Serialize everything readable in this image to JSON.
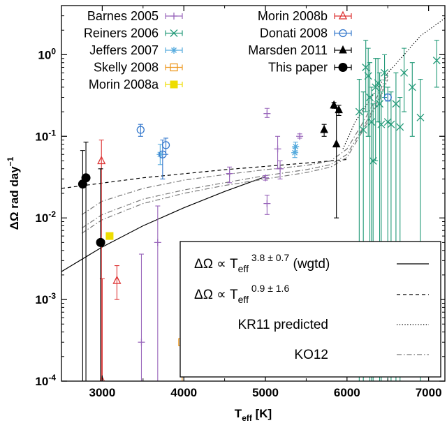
{
  "chart_data": {
    "type": "scatter",
    "xlabel": "T",
    "xlabel_sub": "eff",
    "xlabel_unit": "[K]",
    "ylabel": "ΔΩ rad day",
    "ylabel_sup": "−1",
    "yscale": "log",
    "xlim": [
      2500,
      7200
    ],
    "ylim": [
      0.0001,
      4
    ],
    "x_ticks": [
      3000,
      4000,
      5000,
      6000,
      7000
    ],
    "y_ticks": [
      {
        "value": 1,
        "base": "10",
        "exp": "0"
      },
      {
        "value": 0.1,
        "base": "10",
        "exp": "-1"
      },
      {
        "value": 0.01,
        "base": "10",
        "exp": "-2"
      },
      {
        "value": 0.001,
        "base": "10",
        "exp": "-3"
      },
      {
        "value": 0.0001,
        "base": "10",
        "exp": "-4"
      }
    ],
    "legend_position": "top-left",
    "series": [
      {
        "name": "Barnes 2005",
        "color": "#9966bb",
        "marker": "plus",
        "points": [
          {
            "x": 3480,
            "y": 0.0003,
            "lo": 0.0001,
            "hi": 0.0036
          },
          {
            "x": 3680,
            "y": 0.005,
            "lo": 0.0001,
            "hi": 0.014
          },
          {
            "x": 4560,
            "y": 0.035,
            "lo": 0.027,
            "hi": 0.042
          },
          {
            "x": 5000,
            "y": 0.031,
            "lo": 0.029,
            "hi": 0.033
          },
          {
            "x": 5020,
            "y": 0.015,
            "lo": 0.011,
            "hi": 0.019
          },
          {
            "x": 5020,
            "y": 0.19,
            "lo": 0.17,
            "hi": 0.22
          },
          {
            "x": 5150,
            "y": 0.07,
            "lo": 0.04,
            "hi": 0.1
          },
          {
            "x": 5180,
            "y": 0.04,
            "lo": 0.03,
            "hi": 0.05
          },
          {
            "x": 5420,
            "y": 0.1,
            "lo": 0.095,
            "hi": 0.107
          }
        ]
      },
      {
        "name": "Reiners 2006",
        "color": "#229977",
        "marker": "cross",
        "points": [
          {
            "x": 6150,
            "y": 0.2,
            "lo": 0.0001,
            "hi": 0.5
          },
          {
            "x": 6200,
            "y": 0.12,
            "lo": 0.0001,
            "hi": 0.35
          },
          {
            "x": 6230,
            "y": 0.7,
            "lo": 0.2,
            "hi": 1.5
          },
          {
            "x": 6260,
            "y": 0.55,
            "lo": 0.1,
            "hi": 1.2
          },
          {
            "x": 6280,
            "y": 0.3,
            "lo": 0.0001,
            "hi": 0.8
          },
          {
            "x": 6300,
            "y": 0.15,
            "lo": 0.0001,
            "hi": 0.4
          },
          {
            "x": 6320,
            "y": 0.05,
            "lo": 0.0001,
            "hi": 0.25
          },
          {
            "x": 6350,
            "y": 0.4,
            "lo": 0.05,
            "hi": 0.9
          },
          {
            "x": 6380,
            "y": 0.45,
            "lo": 0.15,
            "hi": 0.9
          },
          {
            "x": 6400,
            "y": 0.25,
            "lo": 0.0001,
            "hi": 0.6
          },
          {
            "x": 6420,
            "y": 0.14,
            "lo": 0.0001,
            "hi": 0.35
          },
          {
            "x": 6460,
            "y": 0.6,
            "lo": 0.3,
            "hi": 1.0
          },
          {
            "x": 6500,
            "y": 0.15,
            "lo": 0.0001,
            "hi": 0.4
          },
          {
            "x": 6540,
            "y": 0.14,
            "lo": 0.0001,
            "hi": 0.35
          },
          {
            "x": 6600,
            "y": 0.25,
            "lo": 0.0001,
            "hi": 0.6
          },
          {
            "x": 6650,
            "y": 0.13,
            "lo": 0.0001,
            "hi": 0.3
          },
          {
            "x": 6700,
            "y": 0.6,
            "lo": 0.2,
            "hi": 1.2
          },
          {
            "x": 6800,
            "y": 0.4,
            "lo": 0.1,
            "hi": 0.8
          },
          {
            "x": 6900,
            "y": 0.17,
            "lo": 0.0001,
            "hi": 0.5
          },
          {
            "x": 7100,
            "y": 0.85,
            "lo": 0.4,
            "hi": 1.5
          }
        ]
      },
      {
        "name": "Jeffers 2007",
        "color": "#55aadd",
        "marker": "star",
        "points": [
          {
            "x": 3710,
            "y": 0.06,
            "lo": 0.045,
            "hi": 0.08
          },
          {
            "x": 5360,
            "y": 0.063,
            "lo": 0.055,
            "hi": 0.072
          },
          {
            "x": 5370,
            "y": 0.075,
            "lo": 0.066,
            "hi": 0.085
          }
        ]
      },
      {
        "name": "Skelly 2008",
        "color": "#ee9922",
        "marker": "square-open",
        "points": [
          {
            "x": 3980,
            "y": 0.0003,
            "lo": 0.0001,
            "hi": 0.0033
          }
        ]
      },
      {
        "name": "Morin 2008a",
        "color": "#eedd00",
        "marker": "square-filled",
        "points": [
          {
            "x": 3090,
            "y": 0.006,
            "lo": 0.006,
            "hi": 0.006
          }
        ]
      },
      {
        "name": "Morin 2008b",
        "color": "#dd3333",
        "marker": "triangle-open",
        "points": [
          {
            "x": 2990,
            "y": 0.05,
            "lo": 0.0001,
            "hi": 0.09
          },
          {
            "x": 3000,
            "y": 0.0001,
            "lo": 0.0001,
            "hi": 0.0018
          },
          {
            "x": 3180,
            "y": 0.0017,
            "lo": 0.001,
            "hi": 0.0026
          }
        ]
      },
      {
        "name": "Donati 2008",
        "color": "#3377cc",
        "marker": "circle-open",
        "points": [
          {
            "x": 3470,
            "y": 0.12,
            "lo": 0.1,
            "hi": 0.14
          },
          {
            "x": 3740,
            "y": 0.06,
            "lo": 0.03,
            "hi": 0.09
          },
          {
            "x": 3780,
            "y": 0.078,
            "lo": 0.06,
            "hi": 0.095
          },
          {
            "x": 6500,
            "y": 0.3,
            "lo": 0.27,
            "hi": 0.33
          }
        ]
      },
      {
        "name": "Marsden 2011",
        "color": "#000000",
        "marker": "triangle-filled",
        "points": [
          {
            "x": 5720,
            "y": 0.12,
            "lo": 0.1,
            "hi": 0.14
          },
          {
            "x": 5840,
            "y": 0.24,
            "lo": 0.22,
            "hi": 0.26
          },
          {
            "x": 5870,
            "y": 0.08,
            "lo": 0.01,
            "hi": 0.22
          },
          {
            "x": 5900,
            "y": 0.21,
            "lo": 0.18,
            "hi": 0.24
          }
        ]
      },
      {
        "name": "This paper",
        "color": "#000000",
        "marker": "circle-filled",
        "points": [
          {
            "x": 2760,
            "y": 0.026,
            "lo": 0.0001,
            "hi": 0.067
          },
          {
            "x": 2800,
            "y": 0.031,
            "lo": 0.0001,
            "hi": 0.085
          },
          {
            "x": 2980,
            "y": 0.005,
            "lo": 0.0001,
            "hi": 0.04
          }
        ]
      }
    ],
    "fits": [
      {
        "name": "fit1",
        "label_base": "ΔΩ ∝ T",
        "label_sub": "eff",
        "label_sup": "3.8 ± 0.7",
        "label_suffix": " (wgtd)",
        "style": "solid",
        "points": [
          [
            2500,
            0.0022
          ],
          [
            3000,
            0.0044
          ],
          [
            3500,
            0.008
          ],
          [
            4000,
            0.0133
          ],
          [
            4500,
            0.0211
          ],
          [
            5000,
            0.032
          ]
        ]
      },
      {
        "name": "fit2",
        "label_base": "ΔΩ ∝ T",
        "label_sub": "eff",
        "label_sup": "0.9 ± 1.6",
        "label_suffix": "",
        "style": "dashed",
        "points": [
          [
            2500,
            0.023
          ],
          [
            3500,
            0.031
          ],
          [
            4500,
            0.039
          ],
          [
            5500,
            0.047
          ],
          [
            6000,
            0.052
          ]
        ]
      },
      {
        "name": "kr11",
        "label": "KR11 predicted",
        "style": "dotted",
        "points": [
          [
            5950,
            0.07
          ],
          [
            6100,
            0.15
          ],
          [
            6300,
            0.3
          ],
          [
            6500,
            0.6
          ],
          [
            6700,
            1.0
          ],
          [
            6900,
            1.7
          ],
          [
            7200,
            2.8
          ]
        ]
      },
      {
        "name": "ko12",
        "label": "KO12",
        "style": "dashdot",
        "curves": [
          [
            [
              2750,
              0.011
            ],
            [
              3000,
              0.016
            ],
            [
              3500,
              0.023
            ],
            [
              4000,
              0.029
            ],
            [
              4500,
              0.034
            ],
            [
              5000,
              0.039
            ],
            [
              5500,
              0.044
            ],
            [
              5800,
              0.05
            ],
            [
              6000,
              0.07
            ],
            [
              6200,
              0.15
            ],
            [
              6400,
              0.35
            ],
            [
              6500,
              0.6
            ]
          ],
          [
            [
              2750,
              0.0075
            ],
            [
              3000,
              0.011
            ],
            [
              3500,
              0.017
            ],
            [
              4000,
              0.022
            ],
            [
              4500,
              0.027
            ],
            [
              5000,
              0.033
            ],
            [
              5500,
              0.039
            ],
            [
              5800,
              0.045
            ],
            [
              6000,
              0.06
            ],
            [
              6200,
              0.13
            ],
            [
              6400,
              0.3
            ],
            [
              6500,
              0.55
            ]
          ],
          [
            [
              2750,
              0.0065
            ],
            [
              3000,
              0.0095
            ],
            [
              3500,
              0.015
            ],
            [
              4000,
              0.02
            ],
            [
              4500,
              0.025
            ],
            [
              5000,
              0.03
            ],
            [
              5500,
              0.036
            ],
            [
              5800,
              0.042
            ],
            [
              6000,
              0.055
            ],
            [
              6200,
              0.12
            ],
            [
              6400,
              0.28
            ],
            [
              6500,
              0.5
            ]
          ]
        ]
      }
    ]
  }
}
